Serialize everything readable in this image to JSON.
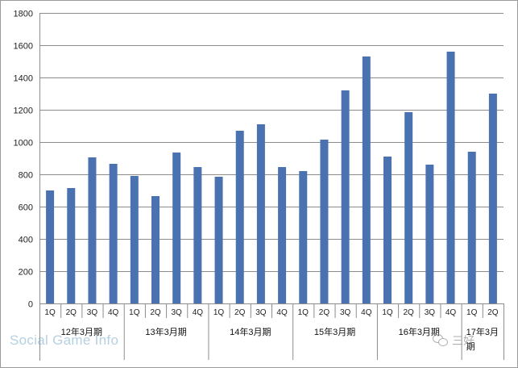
{
  "chart_data": {
    "type": "bar",
    "title": "",
    "xlabel": "",
    "ylabel": "",
    "ylim": [
      0,
      1800
    ],
    "yticks": [
      0,
      200,
      400,
      600,
      800,
      1000,
      1200,
      1400,
      1600,
      1800
    ],
    "grid": "horizontal",
    "legend": "none",
    "bar_color": "#4a72b0",
    "categories": [
      "1Q",
      "2Q",
      "3Q",
      "4Q",
      "1Q",
      "2Q",
      "3Q",
      "4Q",
      "1Q",
      "2Q",
      "3Q",
      "4Q",
      "1Q",
      "2Q",
      "3Q",
      "4Q",
      "1Q",
      "2Q",
      "3Q",
      "4Q",
      "1Q",
      "2Q"
    ],
    "groups": [
      {
        "label": "12年3月期",
        "count": 4
      },
      {
        "label": "13年3月期",
        "count": 4
      },
      {
        "label": "14年3月期",
        "count": 4
      },
      {
        "label": "15年3月期",
        "count": 4
      },
      {
        "label": "16年3月期",
        "count": 4
      },
      {
        "label": "17年3月期",
        "count": 2
      }
    ],
    "values": [
      700,
      715,
      905,
      865,
      790,
      665,
      935,
      845,
      785,
      1070,
      1110,
      845,
      820,
      1015,
      1320,
      1530,
      910,
      1185,
      860,
      1560,
      940,
      1300
    ]
  },
  "watermark": "Social Game Info",
  "wechat_watermark": "三好"
}
